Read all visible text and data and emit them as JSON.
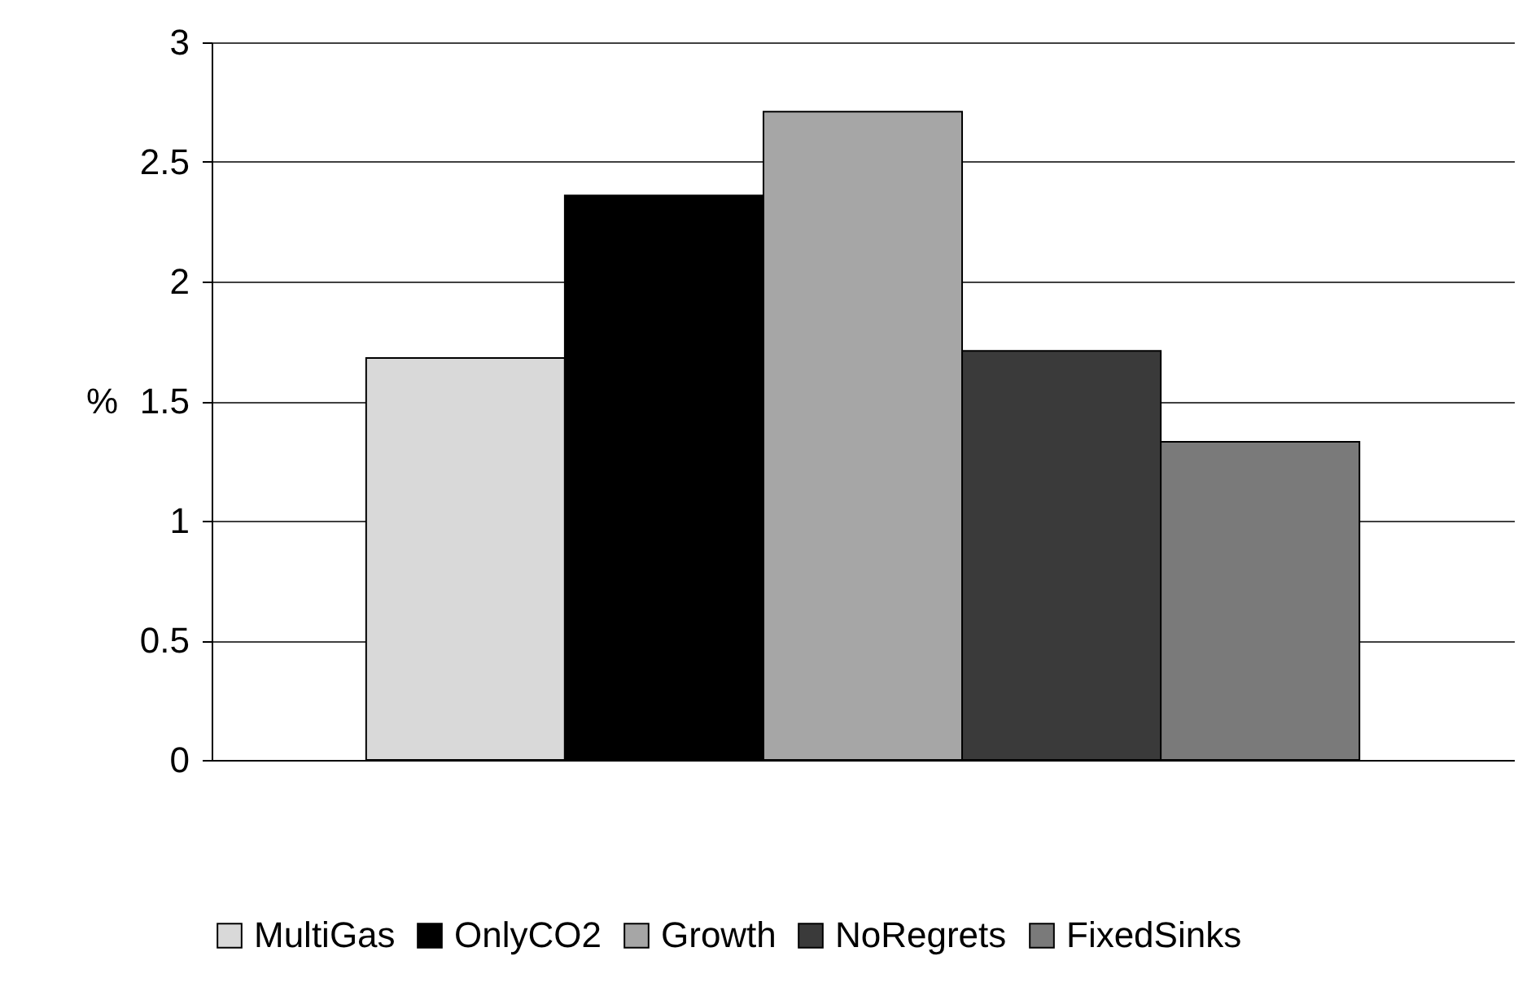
{
  "chart_data": {
    "type": "bar",
    "ylabel": "%",
    "categories": [
      null
    ],
    "series": [
      {
        "name": "MultiGas",
        "color": "#d9d9d9",
        "values": [
          1.68
        ]
      },
      {
        "name": "OnlyCO2",
        "color": "#000000",
        "values": [
          2.36
        ]
      },
      {
        "name": "Growth",
        "color": "#a6a6a6",
        "values": [
          2.71
        ]
      },
      {
        "name": "NoRegrets",
        "color": "#3a3a3a",
        "values": [
          1.71
        ]
      },
      {
        "name": "FixedSinks",
        "color": "#7a7a7a",
        "values": [
          1.33
        ]
      }
    ],
    "ylim": [
      0,
      3
    ],
    "yticks": [
      0,
      0.5,
      1,
      1.5,
      2,
      2.5,
      3
    ],
    "grid": "y",
    "legend": "bottom"
  }
}
